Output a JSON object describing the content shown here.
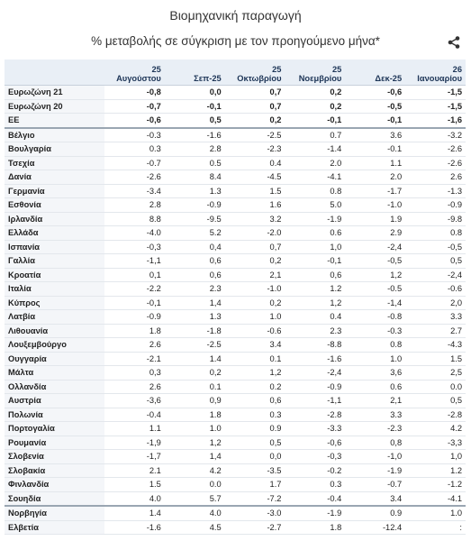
{
  "header": {
    "title": "Βιομηχανική παραγωγή",
    "subtitle": "% μεταβολής σε σύγκριση με τον προηγούμενο μήνα*"
  },
  "table": {
    "columns": [
      [
        "25",
        "Αυγούστου"
      ],
      [
        "Σεπ-25"
      ],
      [
        "25",
        "Οκτωβρίου"
      ],
      [
        "25",
        "Νοεμβρίου"
      ],
      [
        "Δεκ-25"
      ],
      [
        "26",
        "Ιανουαρίου"
      ]
    ],
    "groups": [
      [
        {
          "label": "Ευρωζώνη 21",
          "values": [
            "-0,8",
            "0,0",
            "0,7",
            "0,2",
            "-0,6",
            "-1,5"
          ]
        },
        {
          "label": "Ευρωζώνη 20",
          "values": [
            "-0,7",
            "-0,1",
            "0,7",
            "0,2",
            "-0,5",
            "-1,5"
          ]
        },
        {
          "label": "ΕΕ",
          "values": [
            "-0,6",
            "0,5",
            "0,2",
            "-0,1",
            "-0,1",
            "-1,6"
          ]
        }
      ],
      [
        {
          "label": "Βέλγιο",
          "values": [
            "-0.3",
            "-1.6",
            "-2.5",
            "0.7",
            "3.6",
            "-3.2"
          ]
        },
        {
          "label": "Βουλγαρία",
          "values": [
            "0.3",
            "2.8",
            "-2.3",
            "-1.4",
            "-0.1",
            "-2.6"
          ]
        },
        {
          "label": "Τσεχία",
          "values": [
            "-0.7",
            "0.5",
            "0.4",
            "2.0",
            "1.1",
            "-2.6"
          ]
        },
        {
          "label": "Δανία",
          "values": [
            "-2.6",
            "8.4",
            "-4.5",
            "-4.1",
            "2.0",
            "2.6"
          ]
        },
        {
          "label": "Γερμανία",
          "values": [
            "-3.4",
            "1.3",
            "1.5",
            "0.8",
            "-1.7",
            "-1.3"
          ]
        },
        {
          "label": "Εσθονία",
          "values": [
            "2.8",
            "-0.9",
            "1.6",
            "5.0",
            "-1.0",
            "-0.9"
          ]
        },
        {
          "label": "Ιρλανδία",
          "values": [
            "8.8",
            "-9.5",
            "3.2",
            "-1.9",
            "1.9",
            "-9.8"
          ]
        },
        {
          "label": "Ελλάδα",
          "values": [
            "-4.0",
            "5.2",
            "-2.0",
            "0.6",
            "2.9",
            "0.8"
          ]
        },
        {
          "label": "Ισπανία",
          "values": [
            "-0,3",
            "0,4",
            "0,7",
            "1,0",
            "-2,4",
            "-0,5"
          ]
        },
        {
          "label": "Γαλλία",
          "values": [
            "-1,1",
            "0,6",
            "0,2",
            "-0,1",
            "-0,5",
            "0,5"
          ]
        },
        {
          "label": "Κροατία",
          "values": [
            "0,1",
            "0,6",
            "2,1",
            "0,6",
            "1,2",
            "-2,4"
          ]
        },
        {
          "label": "Ιταλία",
          "values": [
            "-2.2",
            "2.3",
            "-1.0",
            "1.2",
            "-0.5",
            "-0.6"
          ]
        },
        {
          "label": "Κύπρος",
          "values": [
            "-0,1",
            "1,4",
            "0,2",
            "1,2",
            "-1,4",
            "2,0"
          ]
        },
        {
          "label": "Λατβία",
          "values": [
            "-0.9",
            "1.3",
            "1.0",
            "0.4",
            "-0.8",
            "3.3"
          ]
        },
        {
          "label": "Λιθουανία",
          "values": [
            "1.8",
            "-1.8",
            "-0.6",
            "2.3",
            "-0.3",
            "2.7"
          ]
        },
        {
          "label": "Λουξεμβούργο",
          "values": [
            "2.6",
            "-2.5",
            "3.4",
            "-8.8",
            "0.8",
            "-4.3"
          ]
        },
        {
          "label": "Ουγγαρία",
          "values": [
            "-2.1",
            "1.4",
            "0.1",
            "-1.6",
            "1.0",
            "1.5"
          ]
        },
        {
          "label": "Μάλτα",
          "values": [
            "0,3",
            "0,2",
            "1,2",
            "-2,4",
            "3,6",
            "2,5"
          ]
        },
        {
          "label": "Ολλανδία",
          "values": [
            "2.6",
            "0.1",
            "0.2",
            "-0.9",
            "0.6",
            "0.0"
          ]
        },
        {
          "label": "Αυστρία",
          "values": [
            "-3,6",
            "0,9",
            "0,6",
            "-1,1",
            "2,1",
            "0,5"
          ]
        },
        {
          "label": "Πολωνία",
          "values": [
            "-0.4",
            "1.8",
            "0.3",
            "-2.8",
            "3.3",
            "-2.8"
          ]
        },
        {
          "label": "Πορτογαλία",
          "values": [
            "1.1",
            "1.0",
            "0.9",
            "-3.3",
            "-2.3",
            "4.2"
          ]
        },
        {
          "label": "Ρουμανία",
          "values": [
            "-1,9",
            "1,2",
            "0,5",
            "-0,6",
            "0,8",
            "-3,3"
          ]
        },
        {
          "label": "Σλοβενία",
          "values": [
            "-1,7",
            "1,4",
            "0,0",
            "-0,3",
            "-1,0",
            "1,0"
          ]
        },
        {
          "label": "Σλοβακία",
          "values": [
            "2.1",
            "4.2",
            "-3.5",
            "-0.2",
            "-1.9",
            "1.2"
          ]
        },
        {
          "label": "Φινλανδία",
          "values": [
            "1.5",
            "0.0",
            "1.7",
            "0.3",
            "-0.7",
            "-1.2"
          ]
        },
        {
          "label": "Σουηδία",
          "values": [
            "4.0",
            "5.7",
            "-7.2",
            "-0.4",
            "3.4",
            "-4.1"
          ]
        }
      ],
      [
        {
          "label": "Νορβηγία",
          "values": [
            "1.4",
            "4.0",
            "-3.0",
            "-1.9",
            "0.9",
            "1.0"
          ]
        },
        {
          "label": "Ελβετία",
          "values": [
            "-1.6",
            "4.5",
            "-2.7",
            "1.8",
            "-12.4",
            ":"
          ]
        }
      ]
    ]
  }
}
